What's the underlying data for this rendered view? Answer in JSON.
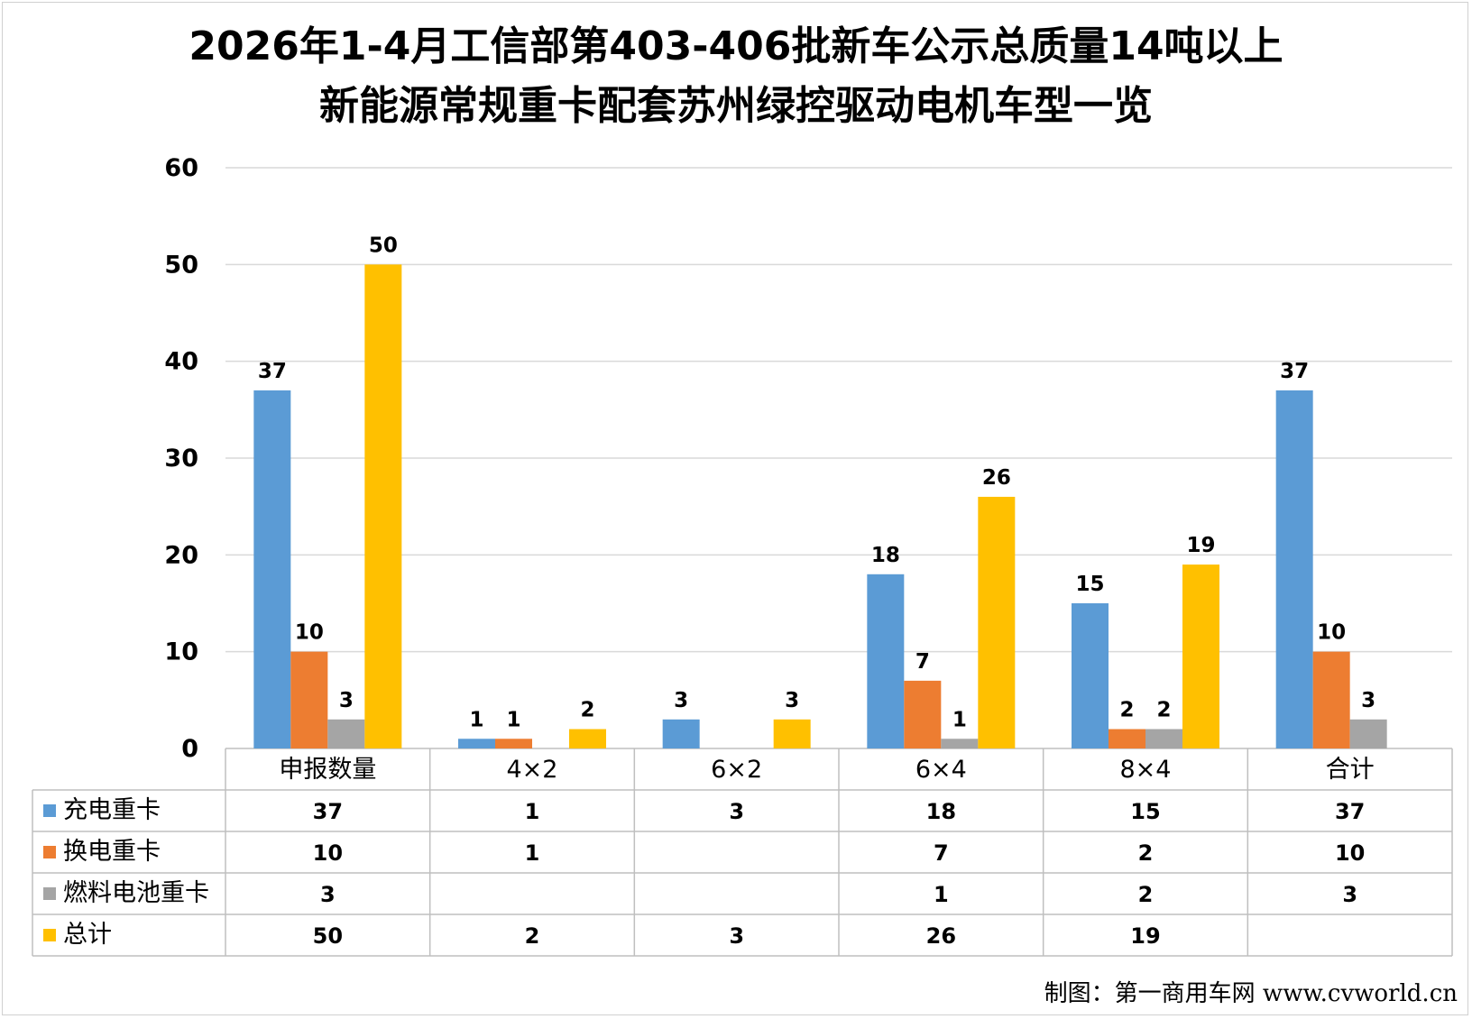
{
  "title_lines": [
    "2026年1-4月工信部第403-406批新车公示总质量14吨以上",
    "新能源常规重卡配套苏州绿控驱动电机车型一览"
  ],
  "credit": "制图：第一商用车网 www.cvworld.cn",
  "chart_data": {
    "type": "bar",
    "categories": [
      "申报数量",
      "4×2",
      "6×2",
      "6×4",
      "8×4",
      "合计"
    ],
    "ylim": [
      0,
      60
    ],
    "yticks": [
      0,
      10,
      20,
      30,
      40,
      50,
      60
    ],
    "grid": true,
    "legend": "data-table",
    "series": [
      {
        "name": "充电重卡",
        "color": "#5B9BD5",
        "values": [
          37,
          1,
          3,
          18,
          15,
          37
        ]
      },
      {
        "name": "换电重卡",
        "color": "#ED7D31",
        "values": [
          10,
          1,
          null,
          7,
          2,
          10
        ]
      },
      {
        "name": "燃料电池重卡",
        "color": "#A5A5A5",
        "values": [
          3,
          null,
          null,
          1,
          2,
          3
        ]
      },
      {
        "name": "总计",
        "color": "#FFC000",
        "values": [
          50,
          2,
          3,
          26,
          19,
          null
        ]
      }
    ]
  }
}
